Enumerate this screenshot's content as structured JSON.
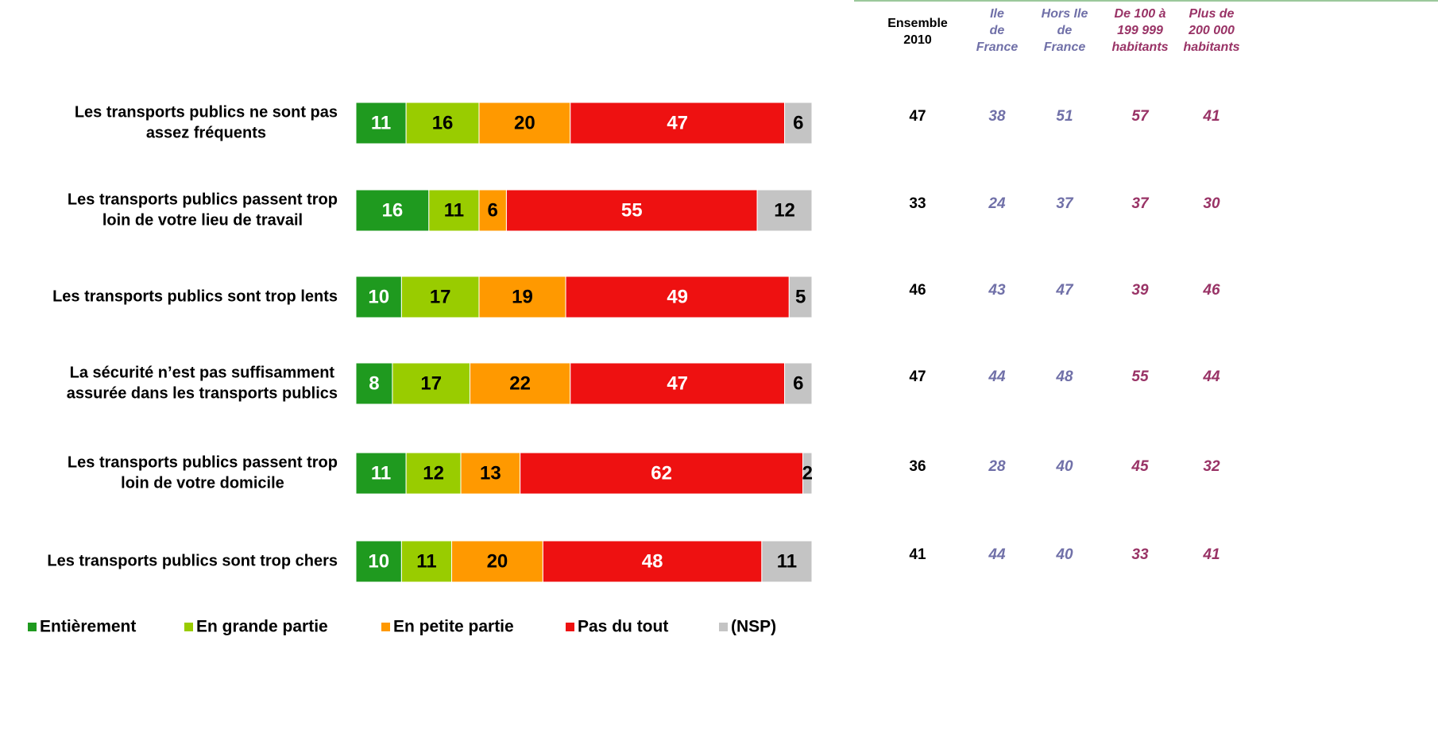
{
  "chart_data": {
    "type": "stacked-hbar",
    "categories": [
      [
        "Les transports publics ne sont pas",
        "assez fréquents"
      ],
      [
        "Les transports publics passent trop",
        "loin de votre lieu de travail"
      ],
      [
        "Les transports publics sont trop lents"
      ],
      [
        "La sécurité n’est pas suffisamment",
        "assurée dans les transports publics"
      ],
      [
        "Les transports publics passent trop",
        "loin de votre domicile"
      ],
      [
        "Les transports publics sont trop chers"
      ]
    ],
    "xlim": [
      0,
      100
    ],
    "series": [
      {
        "name": "Entièrement",
        "color": "#1f9a1f",
        "text_color": "#ffffff",
        "values": [
          11,
          16,
          10,
          8,
          11,
          10
        ]
      },
      {
        "name": "En grande partie",
        "color": "#99cc00",
        "text_color": "#000000",
        "values": [
          16,
          11,
          17,
          17,
          12,
          11
        ]
      },
      {
        "name": "En petite partie",
        "color": "#ff9900",
        "text_color": "#000000",
        "values": [
          20,
          6,
          19,
          22,
          13,
          20
        ]
      },
      {
        "name": "Pas du tout",
        "color": "#ee1111",
        "text_color": "#ffffff",
        "values": [
          47,
          55,
          49,
          47,
          62,
          48
        ]
      },
      {
        "name": "(NSP)",
        "color": "#c4c4c4",
        "text_color": "#000000",
        "values": [
          6,
          12,
          5,
          6,
          2,
          11
        ]
      }
    ]
  },
  "table": {
    "columns": [
      {
        "header": [
          "Ensemble",
          "2010"
        ],
        "color": "#000000",
        "italic": false,
        "values": [
          47,
          33,
          46,
          47,
          36,
          41
        ]
      },
      {
        "header": [
          "Ile",
          "de",
          "France"
        ],
        "color": "#7070a8",
        "italic": true,
        "values": [
          38,
          24,
          43,
          44,
          28,
          44
        ]
      },
      {
        "header": [
          "Hors Ile",
          "de",
          "France"
        ],
        "color": "#7070a8",
        "italic": true,
        "values": [
          51,
          37,
          47,
          48,
          40,
          40
        ]
      },
      {
        "header": [
          "De 100 à",
          "199 999",
          "habitants"
        ],
        "color": "#993366",
        "italic": true,
        "values": [
          57,
          37,
          39,
          55,
          45,
          33
        ]
      },
      {
        "header": [
          "Plus de",
          "200 000",
          "habitants"
        ],
        "color": "#993366",
        "italic": true,
        "values": [
          41,
          30,
          46,
          44,
          32,
          41
        ]
      }
    ]
  }
}
